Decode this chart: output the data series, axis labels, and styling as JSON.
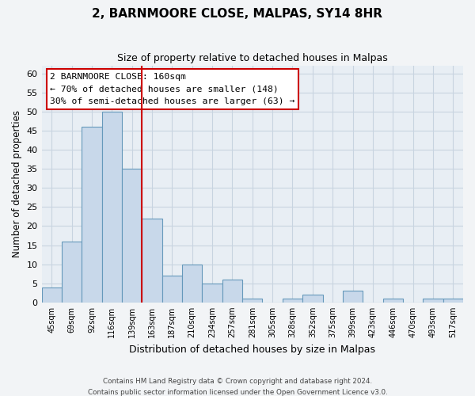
{
  "title": "2, BARNMOORE CLOSE, MALPAS, SY14 8HR",
  "subtitle": "Size of property relative to detached houses in Malpas",
  "xlabel": "Distribution of detached houses by size in Malpas",
  "ylabel": "Number of detached properties",
  "bar_labels": [
    "45sqm",
    "69sqm",
    "92sqm",
    "116sqm",
    "139sqm",
    "163sqm",
    "187sqm",
    "210sqm",
    "234sqm",
    "257sqm",
    "281sqm",
    "305sqm",
    "328sqm",
    "352sqm",
    "375sqm",
    "399sqm",
    "423sqm",
    "446sqm",
    "470sqm",
    "493sqm",
    "517sqm"
  ],
  "bar_values": [
    4,
    16,
    46,
    50,
    35,
    22,
    7,
    10,
    5,
    6,
    1,
    0,
    1,
    2,
    0,
    3,
    0,
    1,
    0,
    1,
    1
  ],
  "bar_color": "#c8d8ea",
  "bar_edge_color": "#6699bb",
  "vline_x": 5,
  "vline_color": "#cc0000",
  "ylim": [
    0,
    62
  ],
  "yticks": [
    0,
    5,
    10,
    15,
    20,
    25,
    30,
    35,
    40,
    45,
    50,
    55,
    60
  ],
  "annotation_box_title": "2 BARNMOORE CLOSE: 160sqm",
  "annotation_line1": "← 70% of detached houses are smaller (148)",
  "annotation_line2": "30% of semi-detached houses are larger (63) →",
  "annotation_box_color": "#ffffff",
  "annotation_box_edge": "#cc0000",
  "grid_color": "#c8d4e0",
  "footer_line1": "Contains HM Land Registry data © Crown copyright and database right 2024.",
  "footer_line2": "Contains public sector information licensed under the Open Government Licence v3.0.",
  "background_color": "#f2f4f6",
  "plot_bg_color": "#e8eef4"
}
